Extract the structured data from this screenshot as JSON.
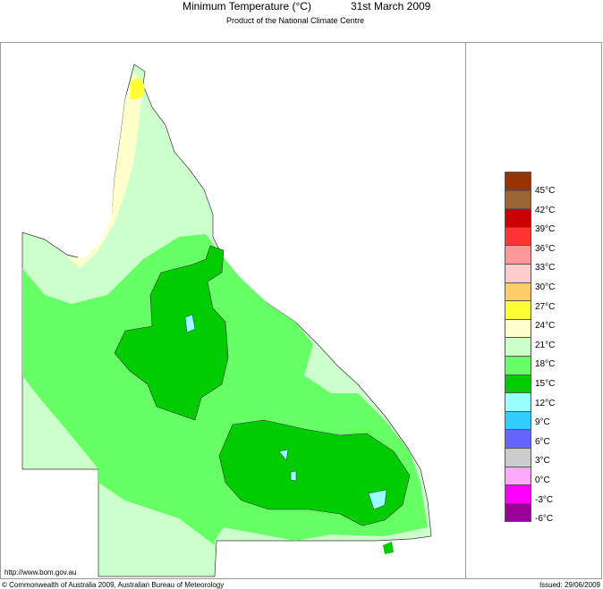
{
  "header": {
    "title": "Minimum Temperature (°C)",
    "date": "31st March 2009",
    "subtitle": "Product of the National Climate Centre"
  },
  "legend": {
    "colors": [
      "#993300",
      "#996633",
      "#cc0000",
      "#ff3333",
      "#ff9999",
      "#ffcccc",
      "#ffcc66",
      "#ffff33",
      "#ffffcc",
      "#ccffcc",
      "#66ff66",
      "#00cc00",
      "#99ffff",
      "#33ccff",
      "#6666ff",
      "#cccccc",
      "#ffaaff",
      "#ff00ff",
      "#990099"
    ],
    "labels": [
      "45°C",
      "42°C",
      "39°C",
      "36°C",
      "33°C",
      "30°C",
      "27°C",
      "24°C",
      "21°C",
      "18°C",
      "15°C",
      "12°C",
      "9°C",
      "6°C",
      "3°C",
      "0°C",
      "-3°C",
      "-6°C"
    ]
  },
  "footer": {
    "url": "http://www.bom.gov.au",
    "copyright": "© Commonwealth of Australia 2009, Australian Bureau of Meteorology",
    "issued": "Issued: 29/06/2009"
  }
}
